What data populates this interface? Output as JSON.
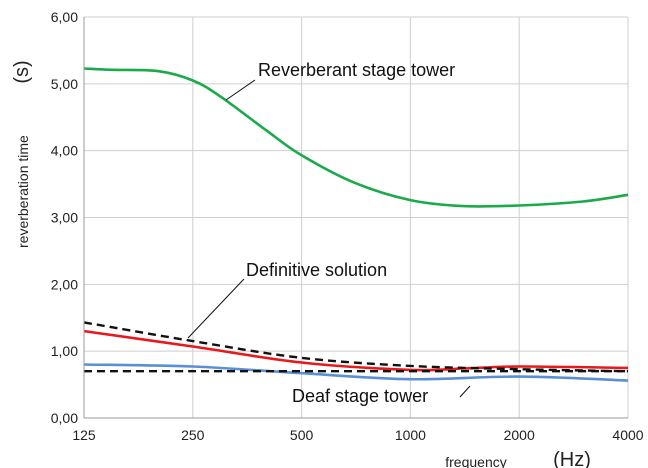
{
  "chart_data": {
    "type": "line",
    "xlabel": "frequency",
    "xunit": "(Hz)",
    "ylabel": "reverberation time",
    "yunit": "(s)",
    "x_scale": "log2",
    "categories": [
      "125",
      "250",
      "500",
      "1000",
      "2000",
      "4000"
    ],
    "y_ticks": [
      "0,00",
      "1,00",
      "2,00",
      "3,00",
      "4,00",
      "5,00",
      "6,00"
    ],
    "ylim": [
      0,
      6
    ],
    "grid": true,
    "series": [
      {
        "color": "#1aaa4a",
        "style": "solid",
        "x": [
          125,
          150,
          200,
          250,
          300,
          400,
          500,
          700,
          1000,
          1400,
          2000,
          3000,
          4000
        ],
        "y": [
          5.23,
          5.21,
          5.19,
          5.05,
          4.8,
          4.3,
          3.93,
          3.52,
          3.26,
          3.17,
          3.18,
          3.24,
          3.34
        ]
      },
      {
        "color": "#e8191b",
        "style": "solid",
        "x": [
          125,
          250,
          500,
          1000,
          1400,
          2000,
          4000
        ],
        "y": [
          1.3,
          1.07,
          0.83,
          0.72,
          0.74,
          0.77,
          0.75
        ]
      },
      {
        "color": "#111111",
        "style": "dashed",
        "x": [
          125,
          250,
          500,
          1000,
          2000,
          4000
        ],
        "y": [
          1.43,
          1.15,
          0.9,
          0.78,
          0.73,
          0.7
        ]
      },
      {
        "color": "#5a8fd8",
        "style": "solid",
        "x": [
          125,
          250,
          500,
          1000,
          2000,
          4000
        ],
        "y": [
          0.8,
          0.77,
          0.67,
          0.58,
          0.62,
          0.56
        ]
      },
      {
        "color": "#111111",
        "style": "dashed",
        "x": [
          125,
          250,
          500,
          1000,
          2000,
          4000
        ],
        "y": [
          0.7,
          0.7,
          0.7,
          0.7,
          0.7,
          0.7
        ]
      }
    ],
    "annotations": [
      {
        "text": "Reverberant stage tower",
        "x": 330,
        "y": 4.75
      },
      {
        "text": "Definitive solution",
        "x": 270,
        "y": 1.12
      },
      {
        "text": "Deaf stage tower",
        "x": 1150,
        "y": 0.72
      }
    ]
  }
}
